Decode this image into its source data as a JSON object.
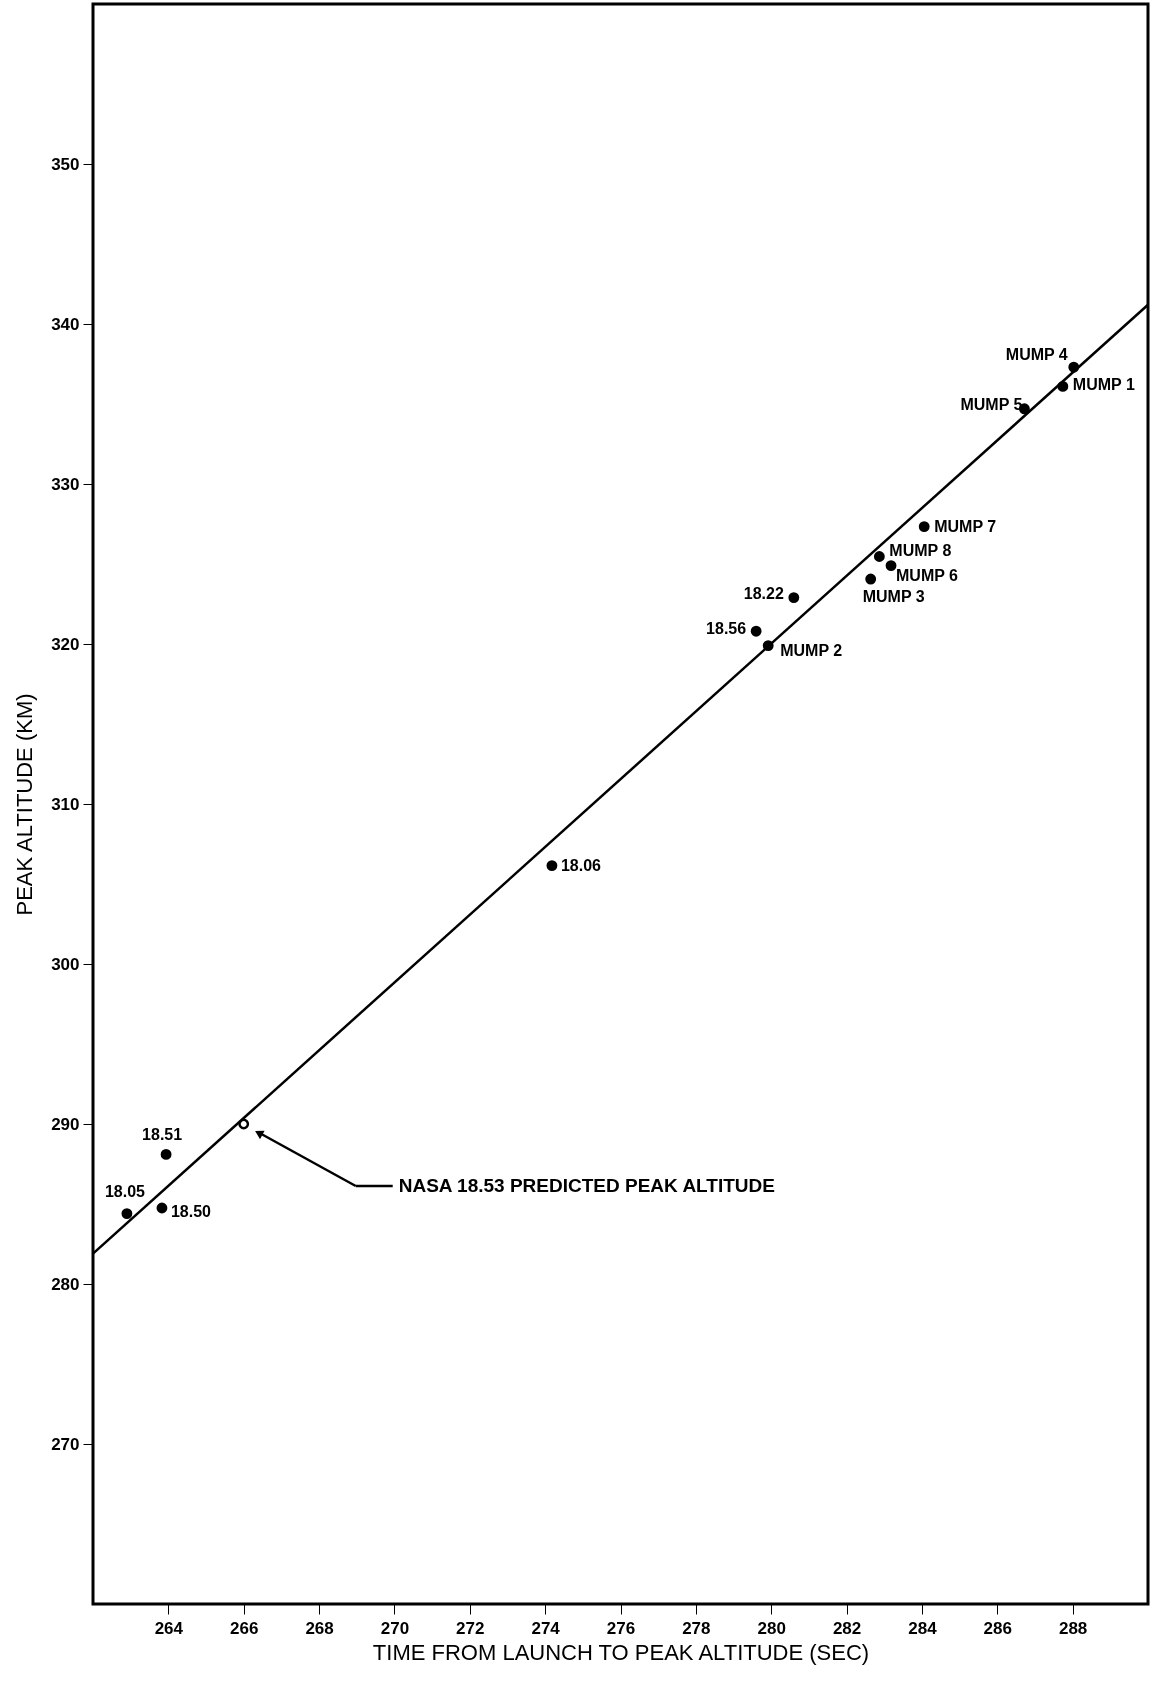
{
  "chart_data": {
    "type": "scatter",
    "xlabel": "TIME FROM LAUNCH TO PEAK ALTITUDE (SEC)",
    "ylabel": "PEAK ALTITUDE (KM)",
    "xlim": [
      262,
      290
    ],
    "ylim": [
      260,
      360
    ],
    "xticks": [
      264,
      266,
      268,
      270,
      272,
      274,
      276,
      278,
      280,
      282,
      284,
      286,
      288
    ],
    "yticks": [
      270,
      280,
      290,
      300,
      310,
      320,
      330,
      340,
      350
    ],
    "grid": false,
    "series": [
      {
        "marker": "circle",
        "color": "#000000",
        "x": [
          262.9,
          263.83,
          263.94,
          274.18,
          279.6,
          279.92,
          280.6,
          282.64,
          282.87,
          283.18,
          284.06,
          286.72,
          287.74,
          288.03
        ],
        "values": [
          284.4,
          284.75,
          288.1,
          306.15,
          320.8,
          319.9,
          322.9,
          324.06,
          325.47,
          324.9,
          327.34,
          334.7,
          336.1,
          337.3
        ]
      },
      {
        "marker": "circle",
        "color": "#ffffff",
        "x": [
          266.0
        ],
        "values": [
          290.0
        ]
      },
      {
        "type": "line",
        "marker": "none",
        "line_style": "solid",
        "color": "#000000",
        "x": [
          262.0,
          290.0
        ],
        "values": [
          281.9,
          341.2
        ]
      }
    ],
    "annotations": [
      {
        "text": "18.05",
        "x": 262.9,
        "y": 284.4
      },
      {
        "text": "18.50",
        "x": 263.83,
        "y": 284.75
      },
      {
        "text": "18.51",
        "x": 263.94,
        "y": 288.1
      },
      {
        "text": "18.06",
        "x": 274.18,
        "y": 306.15
      },
      {
        "text": "18.56",
        "x": 279.6,
        "y": 320.8
      },
      {
        "text": "MUMP 2",
        "x": 279.92,
        "y": 319.9
      },
      {
        "text": "18.22",
        "x": 280.6,
        "y": 322.9
      },
      {
        "text": "MUMP 3",
        "x": 282.64,
        "y": 324.06
      },
      {
        "text": "MUMP 8",
        "x": 282.87,
        "y": 325.47
      },
      {
        "text": "MUMP 6",
        "x": 283.18,
        "y": 324.9
      },
      {
        "text": "MUMP 7",
        "x": 284.06,
        "y": 327.34
      },
      {
        "text": "MUMP 5",
        "x": 286.72,
        "y": 334.7
      },
      {
        "text": "MUMP 1",
        "x": 287.74,
        "y": 336.1
      },
      {
        "text": "MUMP 4",
        "x": 288.03,
        "y": 337.3
      },
      "NASA 18.53 PREDICTED PEAK ALTITUDE"
    ]
  }
}
